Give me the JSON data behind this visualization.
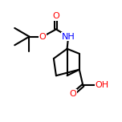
{
  "bg_color": "#ffffff",
  "line_color": "#000000",
  "atom_colors": {
    "O": "#ff0000",
    "N": "#0000ff",
    "C": "#000000",
    "H": "#000000"
  },
  "line_width": 1.5,
  "figsize": [
    1.52,
    1.52
  ],
  "dpi": 100
}
